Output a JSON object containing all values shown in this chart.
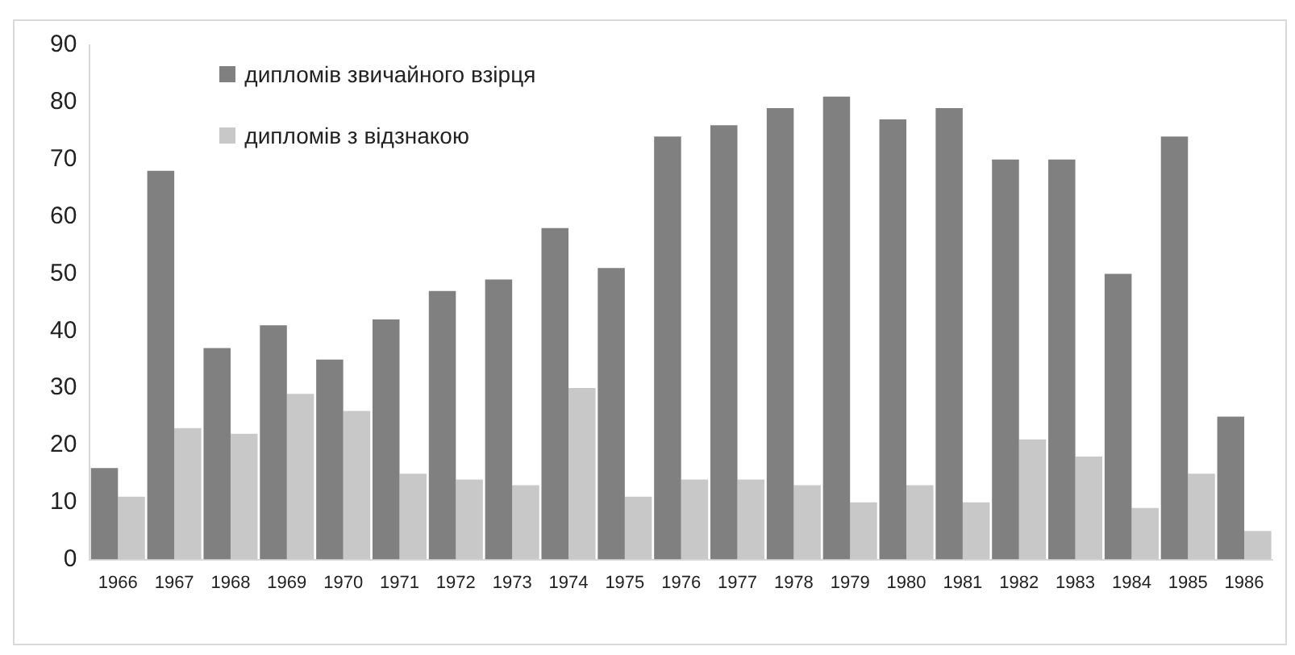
{
  "chart_data": {
    "type": "bar",
    "categories": [
      "1966",
      "1967",
      "1968",
      "1969",
      "1970",
      "1971",
      "1972",
      "1973",
      "1974",
      "1975",
      "1976",
      "1977",
      "1978",
      "1979",
      "1980",
      "1981",
      "1982",
      "1983",
      "1984",
      "1985",
      "1986"
    ],
    "series": [
      {
        "name": "дипломів звичайного взірця",
        "color": "#808080",
        "values": [
          16,
          68,
          37,
          41,
          35,
          42,
          47,
          49,
          58,
          51,
          74,
          76,
          79,
          81,
          77,
          79,
          70,
          70,
          50,
          74,
          25
        ]
      },
      {
        "name": "дипломів з відзнакою",
        "color": "#c8c8c8",
        "values": [
          11,
          23,
          22,
          29,
          26,
          15,
          14,
          13,
          30,
          11,
          14,
          14,
          13,
          10,
          13,
          10,
          21,
          18,
          9,
          15,
          5
        ]
      }
    ],
    "ylim": [
      0,
      90
    ],
    "yticks": [
      0,
      10,
      20,
      30,
      40,
      50,
      60,
      70,
      80,
      90
    ],
    "grid": false,
    "legend": "top left"
  }
}
